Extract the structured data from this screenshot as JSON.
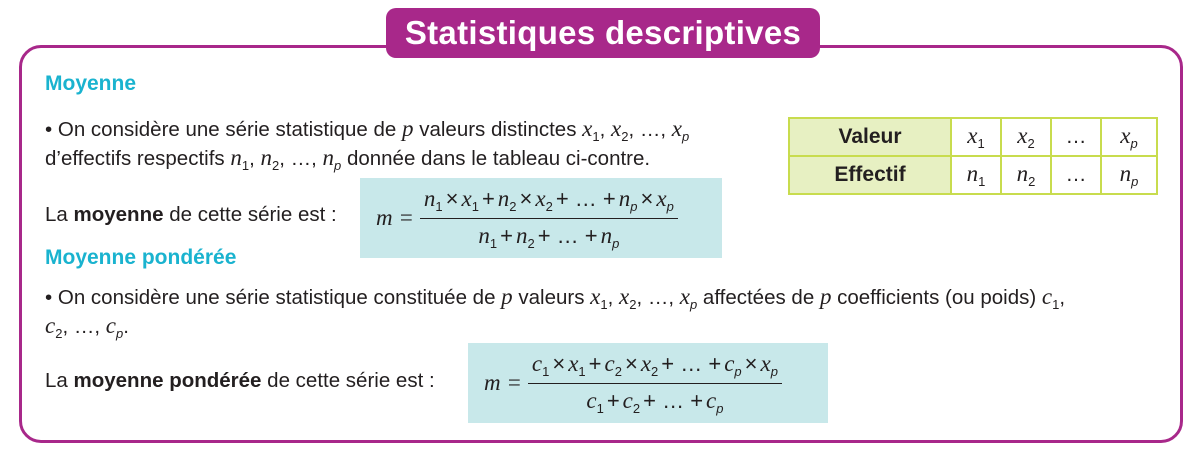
{
  "title": "Statistiques descriptives",
  "colors": {
    "frame": "#a8288a",
    "heading": "#1ab3cf",
    "formula_bg": "#c8e8ea",
    "table_border": "#c8dc4e",
    "table_header_bg": "#e7f0c2"
  },
  "moyenne": {
    "heading": "Moyenne",
    "line1": [
      {
        "t": "• On considère une série statistique de "
      },
      {
        "v": "p"
      },
      {
        "t": " valeurs distinctes "
      },
      {
        "v": "x",
        "s": "1"
      },
      {
        "t": ", "
      },
      {
        "v": "x",
        "s": "2"
      },
      {
        "t": ", …, "
      },
      {
        "v": "x",
        "s": "p"
      }
    ],
    "line2": [
      {
        "t": "d’effectifs respectifs "
      },
      {
        "v": "n",
        "s": "1"
      },
      {
        "t": ", "
      },
      {
        "v": "n",
        "s": "2"
      },
      {
        "t": ", …, "
      },
      {
        "v": "n",
        "s": "p"
      },
      {
        "t": " donnée dans le tableau ci-contre."
      }
    ],
    "line3": [
      {
        "t": "La "
      },
      {
        "b": "moyenne"
      },
      {
        "t": " de cette série est :"
      }
    ],
    "formula": {
      "lhs": "m =",
      "numerator": [
        {
          "v": "n",
          "s": "1"
        },
        {
          "o": "×"
        },
        {
          "v": "x",
          "s": "1"
        },
        {
          "o": "+"
        },
        {
          "v": "n",
          "s": "2"
        },
        {
          "o": "×"
        },
        {
          "v": "x",
          "s": "2"
        },
        {
          "o": "+ … +"
        },
        {
          "v": "n",
          "s": "p"
        },
        {
          "o": "×"
        },
        {
          "v": "x",
          "s": "p"
        }
      ],
      "denominator": [
        {
          "v": "n",
          "s": "1"
        },
        {
          "o": "+"
        },
        {
          "v": "n",
          "s": "2"
        },
        {
          "o": "+ … +"
        },
        {
          "v": "n",
          "s": "p"
        }
      ]
    }
  },
  "table": {
    "rows": [
      {
        "header": "Valeur",
        "cells": [
          {
            "v": "x",
            "s": "1"
          },
          {
            "v": "x",
            "s": "2"
          },
          {
            "t": "…"
          },
          {
            "v": "x",
            "s": "p"
          }
        ]
      },
      {
        "header": "Effectif",
        "cells": [
          {
            "v": "n",
            "s": "1"
          },
          {
            "v": "n",
            "s": "2"
          },
          {
            "t": "…"
          },
          {
            "v": "n",
            "s": "p"
          }
        ]
      }
    ]
  },
  "ponderee": {
    "heading": "Moyenne pondérée",
    "line1": [
      {
        "t": "• On considère une série statistique constituée de "
      },
      {
        "v": "p"
      },
      {
        "t": " valeurs "
      },
      {
        "v": "x",
        "s": "1"
      },
      {
        "t": ", "
      },
      {
        "v": "x",
        "s": "2"
      },
      {
        "t": ", …, "
      },
      {
        "v": "x",
        "s": "p"
      },
      {
        "t": " affectées de "
      },
      {
        "v": "p"
      },
      {
        "t": " coefficients (ou poids) "
      },
      {
        "v": "c",
        "s": "1"
      },
      {
        "t": ","
      }
    ],
    "line2": [
      {
        "v": "c",
        "s": "2"
      },
      {
        "t": ", …, "
      },
      {
        "v": "c",
        "s": "p"
      },
      {
        "t": "."
      }
    ],
    "line3": [
      {
        "t": "La "
      },
      {
        "b": "moyenne pondérée"
      },
      {
        "t": " de cette série est :"
      }
    ],
    "formula": {
      "lhs": "m =",
      "numerator": [
        {
          "v": "c",
          "s": "1"
        },
        {
          "o": "×"
        },
        {
          "v": "x",
          "s": "1"
        },
        {
          "o": "+"
        },
        {
          "v": "c",
          "s": "2"
        },
        {
          "o": "×"
        },
        {
          "v": "x",
          "s": "2"
        },
        {
          "o": "+ … +"
        },
        {
          "v": "c",
          "s": "p"
        },
        {
          "o": "×"
        },
        {
          "v": "x",
          "s": "p"
        }
      ],
      "denominator": [
        {
          "v": "c",
          "s": "1"
        },
        {
          "o": "+"
        },
        {
          "v": "c",
          "s": "2"
        },
        {
          "o": "+ … +"
        },
        {
          "v": "c",
          "s": "p"
        }
      ]
    }
  }
}
